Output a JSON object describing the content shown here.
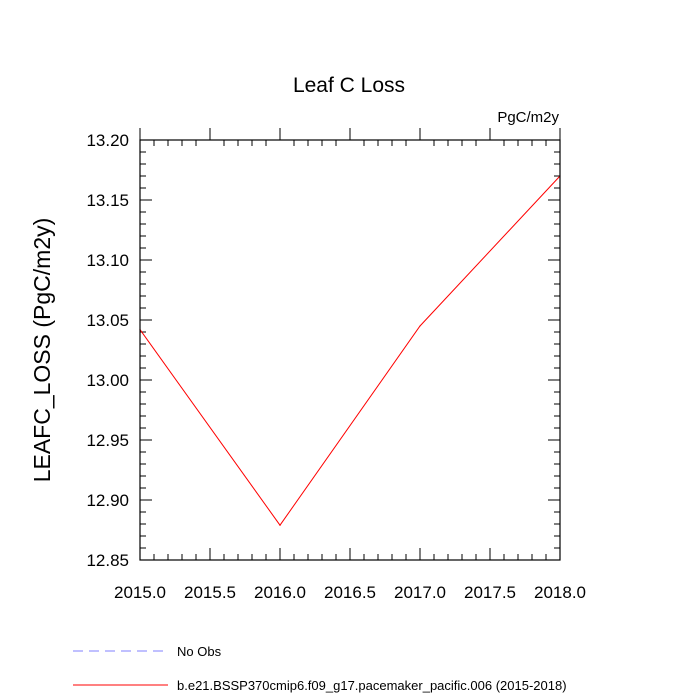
{
  "chart_data": {
    "type": "line",
    "title": "Leaf C Loss",
    "units_label": "PgC/m2y",
    "xlabel": "",
    "ylabel": "LEAFC_LOSS  (PgC/m2y)",
    "xlim": [
      2015.0,
      2018.0
    ],
    "ylim": [
      12.85,
      13.2
    ],
    "x_ticks": [
      "2015.0",
      "2015.5",
      "2016.0",
      "2016.5",
      "2017.0",
      "2017.5",
      "2018.0"
    ],
    "x_tick_values": [
      2015.0,
      2015.5,
      2016.0,
      2016.5,
      2017.0,
      2017.5,
      2018.0
    ],
    "y_ticks": [
      "12.85",
      "12.90",
      "12.95",
      "13.00",
      "13.05",
      "13.10",
      "13.15",
      "13.20"
    ],
    "y_tick_values": [
      12.85,
      12.9,
      12.95,
      13.0,
      13.05,
      13.1,
      13.15,
      13.2
    ],
    "grid": false,
    "legend_placement": "bottom-left",
    "series": [
      {
        "name": "b.e21.BSSP370cmip6.f09_g17.pacemaker_pacific.006 (2015-2018)",
        "color": "#ff0000",
        "style": "solid",
        "x": [
          2015.0,
          2016.0,
          2017.0,
          2018.0
        ],
        "y": [
          13.042,
          12.879,
          13.045,
          13.17
        ]
      }
    ],
    "legend": [
      {
        "label": "No Obs",
        "color": "#8080ff",
        "style": "dashed"
      },
      {
        "label": "b.e21.BSSP370cmip6.f09_g17.pacemaker_pacific.006 (2015-2018)",
        "color": "#ff0000",
        "style": "solid"
      }
    ]
  }
}
